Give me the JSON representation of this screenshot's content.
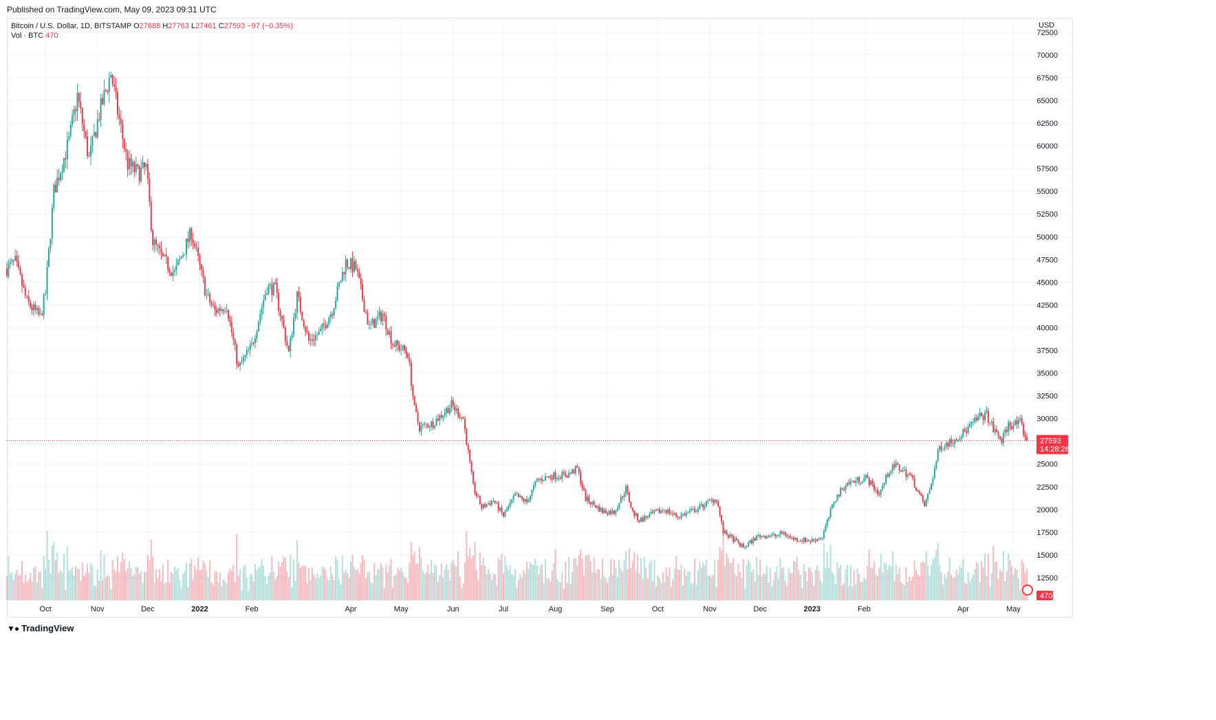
{
  "published": "Published on TradingView.com, May 09, 2023 09:31 UTC",
  "legend": {
    "symbol": "Bitcoin / U.S. Dollar, 1D, BITSTAMP",
    "o_label": "O",
    "o": "27688",
    "h_label": "H",
    "h": "27763",
    "l_label": "L",
    "l": "27461",
    "c_label": "C",
    "c": "27593",
    "change": "−97 (−0.35%)",
    "vol_label": "Vol · BTC",
    "vol": "470"
  },
  "currency": "USD",
  "footer": {
    "brand": "TradingView",
    "logo_icon": "tradingview-logo-icon"
  },
  "colors": {
    "up": "#26a69a",
    "down": "#f23645",
    "grid": "#f0f3fa",
    "text": "#131722"
  },
  "price_label": {
    "value": "27593",
    "countdown": "14:28:26"
  },
  "volume_label": "470",
  "chart_data": {
    "type": "candlestick",
    "title": "Bitcoin / U.S. Dollar, 1D, BITSTAMP",
    "y_ticks": [
      "72500",
      "70000",
      "67500",
      "65000",
      "62500",
      "60000",
      "57500",
      "55000",
      "52500",
      "50000",
      "47500",
      "45000",
      "42500",
      "40000",
      "37500",
      "35000",
      "32500",
      "30000",
      "25000",
      "22500",
      "20000",
      "17500",
      "15000",
      "12500"
    ],
    "ylim": [
      10000,
      74000
    ],
    "x_ticks": [
      "Oct",
      "Nov",
      "Dec",
      "2022",
      "Feb",
      "Apr",
      "May",
      "Jun",
      "Jul",
      "Aug",
      "Sep",
      "Oct",
      "Nov",
      "Dec",
      "2023",
      "Feb",
      "Apr",
      "May"
    ],
    "x_tick_dates": [
      "2021-10-01",
      "2021-11-01",
      "2021-12-01",
      "2022-01-01",
      "2022-02-01",
      "2022-04-01",
      "2022-05-01",
      "2022-06-01",
      "2022-07-01",
      "2022-08-01",
      "2022-09-01",
      "2022-10-01",
      "2022-11-01",
      "2022-12-01",
      "2023-01-01",
      "2023-02-01",
      "2023-04-01",
      "2023-05-01"
    ],
    "date_range": [
      "2021-09-08",
      "2023-05-09"
    ],
    "close_path": [
      [
        "2021-09-08",
        46500
      ],
      [
        "2021-09-13",
        47200
      ],
      [
        "2021-09-20",
        42800
      ],
      [
        "2021-09-28",
        41100
      ],
      [
        "2021-10-01",
        43800
      ],
      [
        "2021-10-06",
        55000
      ],
      [
        "2021-10-15",
        60500
      ],
      [
        "2021-10-20",
        65500
      ],
      [
        "2021-10-27",
        58500
      ],
      [
        "2021-11-02",
        63500
      ],
      [
        "2021-11-09",
        68000
      ],
      [
        "2021-11-13",
        63800
      ],
      [
        "2021-11-19",
        58000
      ],
      [
        "2021-11-25",
        57000
      ],
      [
        "2021-11-30",
        57500
      ],
      [
        "2021-12-04",
        49500
      ],
      [
        "2021-12-10",
        47500
      ],
      [
        "2021-12-17",
        46000
      ],
      [
        "2021-12-27",
        50500
      ],
      [
        "2022-01-05",
        43500
      ],
      [
        "2022-01-10",
        41800
      ],
      [
        "2022-01-17",
        42500
      ],
      [
        "2022-01-24",
        35500
      ],
      [
        "2022-02-01",
        38000
      ],
      [
        "2022-02-10",
        44500
      ],
      [
        "2022-02-15",
        44200
      ],
      [
        "2022-02-23",
        37200
      ],
      [
        "2022-02-28",
        43500
      ],
      [
        "2022-03-07",
        38500
      ],
      [
        "2022-03-14",
        39500
      ],
      [
        "2022-03-21",
        42000
      ],
      [
        "2022-03-29",
        47200
      ],
      [
        "2022-04-04",
        46500
      ],
      [
        "2022-04-12",
        40000
      ],
      [
        "2022-04-20",
        41500
      ],
      [
        "2022-04-26",
        38300
      ],
      [
        "2022-05-05",
        37200
      ],
      [
        "2022-05-09",
        31000
      ],
      [
        "2022-05-12",
        29000
      ],
      [
        "2022-05-20",
        29500
      ],
      [
        "2022-05-31",
        31500
      ],
      [
        "2022-06-07",
        30000
      ],
      [
        "2022-06-13",
        22500
      ],
      [
        "2022-06-18",
        20200
      ],
      [
        "2022-06-25",
        21000
      ],
      [
        "2022-07-01",
        19300
      ],
      [
        "2022-07-08",
        21500
      ],
      [
        "2022-07-15",
        20800
      ],
      [
        "2022-07-21",
        23200
      ],
      [
        "2022-07-30",
        23700
      ],
      [
        "2022-08-08",
        23800
      ],
      [
        "2022-08-14",
        24500
      ],
      [
        "2022-08-19",
        21200
      ],
      [
        "2022-08-29",
        19800
      ],
      [
        "2022-09-05",
        19700
      ],
      [
        "2022-09-12",
        22300
      ],
      [
        "2022-09-16",
        19700
      ],
      [
        "2022-09-20",
        18800
      ],
      [
        "2022-09-28",
        19500
      ],
      [
        "2022-10-05",
        20000
      ],
      [
        "2022-10-13",
        19200
      ],
      [
        "2022-10-25",
        20100
      ],
      [
        "2022-10-30",
        20700
      ],
      [
        "2022-11-05",
        21200
      ],
      [
        "2022-11-09",
        17500
      ],
      [
        "2022-11-15",
        16700
      ],
      [
        "2022-11-21",
        15800
      ],
      [
        "2022-11-30",
        17100
      ],
      [
        "2022-12-10",
        17100
      ],
      [
        "2022-12-15",
        17400
      ],
      [
        "2022-12-20",
        16800
      ],
      [
        "2022-12-31",
        16550
      ],
      [
        "2023-01-07",
        16950
      ],
      [
        "2023-01-14",
        20900
      ],
      [
        "2023-01-21",
        22800
      ],
      [
        "2023-02-02",
        23500
      ],
      [
        "2023-02-10",
        21700
      ],
      [
        "2023-02-16",
        24300
      ],
      [
        "2023-02-20",
        24800
      ],
      [
        "2023-03-01",
        23600
      ],
      [
        "2023-03-09",
        20400
      ],
      [
        "2023-03-12",
        22100
      ],
      [
        "2023-03-18",
        26900
      ],
      [
        "2023-03-25",
        27500
      ],
      [
        "2023-04-01",
        28400
      ],
      [
        "2023-04-11",
        30200
      ],
      [
        "2023-04-15",
        30400
      ],
      [
        "2023-04-19",
        28800
      ],
      [
        "2023-04-24",
        27600
      ],
      [
        "2023-04-28",
        29300
      ],
      [
        "2023-05-05",
        29500
      ],
      [
        "2023-05-09",
        27593
      ]
    ]
  }
}
